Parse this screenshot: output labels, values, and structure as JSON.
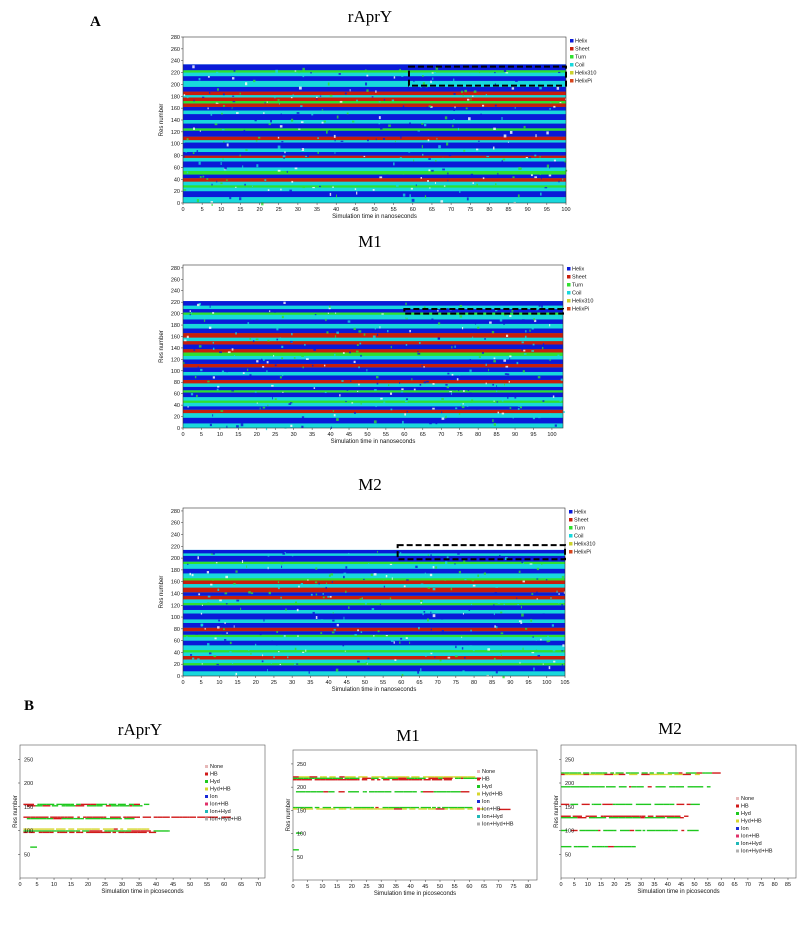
{
  "panels": {
    "a": "A",
    "b": "B"
  },
  "chart_data": [
    {
      "type": "heatmap",
      "title": "rAprY",
      "xlabel": "Simulation time in nanoseconds",
      "ylabel": "Res number",
      "xlim": [
        0,
        100
      ],
      "ylim": [
        0,
        280
      ],
      "xticks": [
        0,
        5,
        10,
        15,
        20,
        25,
        30,
        35,
        40,
        45,
        50,
        55,
        60,
        65,
        70,
        75,
        80,
        85,
        90,
        95,
        100
      ],
      "yticks": [
        0,
        20,
        40,
        60,
        80,
        100,
        120,
        140,
        160,
        180,
        200,
        220,
        240,
        260,
        280
      ],
      "legend": [
        "Helix",
        "Sheet",
        "Turn",
        "Coil",
        "Helix310",
        "HelixPi"
      ],
      "legend_position": "right",
      "legend_colors": [
        "#0a1ad8",
        "#c81e0c",
        "#2fe02f",
        "#18d8dc",
        "#ccd22c",
        "#d8441c"
      ],
      "bands_from_residue_0": [
        [
          "coil",
          10
        ],
        [
          "helix",
          10
        ],
        [
          "coil",
          6
        ],
        [
          "turn",
          4
        ],
        [
          "coil",
          6
        ],
        [
          "sheet",
          6
        ],
        [
          "helix",
          6
        ],
        [
          "turn",
          6
        ],
        [
          "coil",
          6
        ],
        [
          "helix",
          10
        ],
        [
          "coil",
          6
        ],
        [
          "sheet",
          4
        ],
        [
          "helix",
          6
        ],
        [
          "coil",
          6
        ],
        [
          "helix",
          10
        ],
        [
          "coil",
          4
        ],
        [
          "sheet",
          6
        ],
        [
          "helix",
          10
        ],
        [
          "turn",
          4
        ],
        [
          "helix",
          8
        ],
        [
          "coil",
          6
        ],
        [
          "helix",
          10
        ],
        [
          "coil",
          6
        ],
        [
          "helix",
          6
        ],
        [
          "sheet",
          6
        ],
        [
          "turn",
          4
        ],
        [
          "sheet",
          6
        ],
        [
          "coil",
          4
        ],
        [
          "sheet",
          6
        ],
        [
          "helix",
          8
        ],
        [
          "coil",
          10
        ],
        [
          "helix",
          8
        ],
        [
          "coil",
          6
        ],
        [
          "turn",
          4
        ],
        [
          "helix",
          10
        ]
      ],
      "annotation": "dashed box, residues ~198-230, time 59-100"
    },
    {
      "type": "heatmap",
      "title": "M1",
      "xlabel": "Simulation time in nanoseconds",
      "ylabel": "Res number",
      "xlim": [
        0,
        103
      ],
      "ylim": [
        0,
        285
      ],
      "xticks": [
        0,
        5,
        10,
        15,
        20,
        25,
        30,
        35,
        40,
        45,
        50,
        55,
        60,
        65,
        70,
        75,
        80,
        85,
        90,
        95,
        100
      ],
      "yticks": [
        0,
        20,
        40,
        60,
        80,
        100,
        120,
        140,
        160,
        180,
        200,
        220,
        240,
        260,
        280
      ],
      "legend": [
        "Helix",
        "Sheet",
        "Turn",
        "Coil",
        "Helix310",
        "HelixPi"
      ],
      "legend_position": "right",
      "legend_colors": [
        "#0a1ad8",
        "#c81e0c",
        "#2fe02f",
        "#18d8dc",
        "#ccd22c",
        "#d8441c"
      ],
      "bands_from_residue_0": [
        [
          "coil",
          8
        ],
        [
          "helix",
          10
        ],
        [
          "coil",
          8
        ],
        [
          "sheet",
          6
        ],
        [
          "helix",
          6
        ],
        [
          "coil",
          6
        ],
        [
          "turn",
          4
        ],
        [
          "coil",
          6
        ],
        [
          "helix",
          8
        ],
        [
          "turn",
          4
        ],
        [
          "helix",
          6
        ],
        [
          "coil",
          6
        ],
        [
          "sheet",
          6
        ],
        [
          "helix",
          8
        ],
        [
          "coil",
          6
        ],
        [
          "helix",
          8
        ],
        [
          "sheet",
          6
        ],
        [
          "helix",
          8
        ],
        [
          "coil",
          6
        ],
        [
          "turn",
          6
        ],
        [
          "sheet",
          6
        ],
        [
          "helix",
          8
        ],
        [
          "sheet",
          6
        ],
        [
          "coil",
          6
        ],
        [
          "sheet",
          8
        ],
        [
          "helix",
          8
        ],
        [
          "coil",
          8
        ],
        [
          "helix",
          8
        ],
        [
          "coil",
          8
        ],
        [
          "turn",
          4
        ],
        [
          "helix",
          6
        ],
        [
          "coil",
          6
        ],
        [
          "helix",
          8
        ]
      ],
      "annotation": "dashed box, residues ~200-208, time 60-103"
    },
    {
      "type": "heatmap",
      "title": "M2",
      "xlabel": "Simulation time in nanoseconds",
      "ylabel": "Res number",
      "xlim": [
        0,
        105
      ],
      "ylim": [
        0,
        285
      ],
      "xticks": [
        0,
        5,
        10,
        15,
        20,
        25,
        30,
        35,
        40,
        45,
        50,
        55,
        60,
        65,
        70,
        75,
        80,
        85,
        90,
        95,
        100,
        105
      ],
      "yticks": [
        0,
        20,
        40,
        60,
        80,
        100,
        120,
        140,
        160,
        180,
        200,
        220,
        240,
        260,
        280
      ],
      "legend": [
        "Helix",
        "Sheet",
        "Turn",
        "Coil",
        "Helix310",
        "HelixPi"
      ],
      "legend_position": "right",
      "legend_colors": [
        "#0a1ad8",
        "#c81e0c",
        "#2fe02f",
        "#18d8dc",
        "#ccd22c",
        "#d8441c"
      ],
      "bands_from_residue_0": [
        [
          "coil",
          8
        ],
        [
          "helix",
          10
        ],
        [
          "turn",
          4
        ],
        [
          "coil",
          6
        ],
        [
          "sheet",
          6
        ],
        [
          "coil",
          6
        ],
        [
          "turn",
          4
        ],
        [
          "coil",
          8
        ],
        [
          "helix",
          8
        ],
        [
          "coil",
          6
        ],
        [
          "turn",
          4
        ],
        [
          "helix",
          6
        ],
        [
          "sheet",
          6
        ],
        [
          "helix",
          8
        ],
        [
          "coil",
          6
        ],
        [
          "helix",
          10
        ],
        [
          "coil",
          6
        ],
        [
          "helix",
          8
        ],
        [
          "turn",
          4
        ],
        [
          "coil",
          6
        ],
        [
          "sheet",
          6
        ],
        [
          "helix",
          6
        ],
        [
          "sheet",
          8
        ],
        [
          "coil",
          6
        ],
        [
          "sheet",
          6
        ],
        [
          "turn",
          4
        ],
        [
          "coil",
          8
        ],
        [
          "helix",
          8
        ],
        [
          "coil",
          8
        ],
        [
          "turn",
          4
        ],
        [
          "helix",
          10
        ],
        [
          "coil",
          4
        ],
        [
          "helix",
          6
        ]
      ],
      "annotation": "dashed box, residues ~198-222, time 59-105"
    },
    {
      "type": "scatter",
      "title": "rAprY",
      "xlabel": "Simulation time in picoseconds",
      "ylabel": "Res number",
      "xlim": [
        0,
        72
      ],
      "ylim": [
        0,
        280
      ],
      "xticks": [
        0,
        5,
        10,
        15,
        20,
        25,
        30,
        35,
        40,
        45,
        50,
        55,
        60,
        65,
        70
      ],
      "yticks": [
        50,
        100,
        150,
        200,
        250
      ],
      "legend": [
        "None",
        "HB",
        "Hyd",
        "Hyd+HB",
        "Ion",
        "Ion+HB",
        "Ion+Hyd",
        "Ion+Hyd+HB"
      ],
      "legend_position": "right",
      "legend_colors": [
        "#e6b8b8",
        "#d11a1a",
        "#1ec81e",
        "#d6d62c",
        "#1a2ad6",
        "#e0306a",
        "#20b8b8",
        "#b0b0b0"
      ],
      "tracks": [
        {
          "res": 155,
          "t0": 1,
          "t1": 38,
          "kind": "Hyd"
        },
        {
          "res": 152,
          "t0": 2,
          "t1": 36,
          "kind": "Hyd"
        },
        {
          "res": 128,
          "t0": 1,
          "t1": 62,
          "kind": "HB"
        },
        {
          "res": 125,
          "t0": 2,
          "t1": 34,
          "kind": "Hyd"
        },
        {
          "res": 103,
          "t0": 1,
          "t1": 38,
          "kind": "Hyd+HB"
        },
        {
          "res": 99,
          "t0": 1,
          "t1": 44,
          "kind": "Hyd"
        },
        {
          "res": 96,
          "t0": 1,
          "t1": 40,
          "kind": "HB"
        },
        {
          "res": 65,
          "t0": 3,
          "t1": 5,
          "kind": "Hyd"
        }
      ]
    },
    {
      "type": "scatter",
      "title": "M1",
      "xlabel": "Simulation time in picoseconds",
      "ylabel": "Res number",
      "xlim": [
        0,
        83
      ],
      "ylim": [
        0,
        280
      ],
      "xticks": [
        0,
        5,
        10,
        15,
        20,
        25,
        30,
        35,
        40,
        45,
        50,
        55,
        60,
        65,
        70,
        75,
        80
      ],
      "yticks": [
        50,
        100,
        150,
        200,
        250
      ],
      "legend": [
        "None",
        "HB",
        "Hyd",
        "Hyd+HB",
        "Ion",
        "Ion+HB",
        "Ion+Hyd",
        "Ion+Hyd+HB"
      ],
      "legend_position": "right",
      "legend_colors": [
        "#e6b8b8",
        "#d11a1a",
        "#1ec81e",
        "#d6d62c",
        "#1a2ad6",
        "#e0306a",
        "#20b8b8",
        "#b0b0b0"
      ],
      "tracks": [
        {
          "res": 222,
          "t0": 0,
          "t1": 62,
          "kind": "Hyd+HB"
        },
        {
          "res": 219,
          "t0": 0,
          "t1": 64,
          "kind": "Hyd"
        },
        {
          "res": 216,
          "t0": 0,
          "t1": 55,
          "kind": "HB"
        },
        {
          "res": 190,
          "t0": 1,
          "t1": 60,
          "kind": "Hyd"
        },
        {
          "res": 156,
          "t0": 0,
          "t1": 62,
          "kind": "Hyd"
        },
        {
          "res": 153,
          "t0": 0,
          "t1": 65,
          "kind": "Hyd+HB"
        },
        {
          "res": 152,
          "t0": 70,
          "t1": 74,
          "kind": "HB"
        },
        {
          "res": 101,
          "t0": 1,
          "t1": 3,
          "kind": "Hyd"
        },
        {
          "res": 65,
          "t0": 0,
          "t1": 2,
          "kind": "Hyd"
        }
      ]
    },
    {
      "type": "scatter",
      "title": "M2",
      "xlabel": "Simulation time in picoseconds",
      "ylabel": "Res number",
      "xlim": [
        0,
        88
      ],
      "ylim": [
        0,
        280
      ],
      "xticks": [
        0,
        5,
        10,
        15,
        20,
        25,
        30,
        35,
        40,
        45,
        50,
        55,
        60,
        65,
        70,
        75,
        80,
        85
      ],
      "yticks": [
        50,
        100,
        150,
        200,
        250
      ],
      "legend": [
        "None",
        "HB",
        "Hyd",
        "Hyd+HB",
        "Ion",
        "Ion+HB",
        "Ion+Hyd",
        "Ion+Hyd+HB"
      ],
      "legend_position": "right",
      "legend_colors": [
        "#e6b8b8",
        "#d11a1a",
        "#1ec81e",
        "#d6d62c",
        "#1a2ad6",
        "#e0306a",
        "#20b8b8",
        "#b0b0b0"
      ],
      "tracks": [
        {
          "res": 221,
          "t0": 0,
          "t1": 60,
          "kind": "Hyd"
        },
        {
          "res": 218,
          "t0": 0,
          "t1": 52,
          "kind": "Hyd+HB"
        },
        {
          "res": 192,
          "t0": 0,
          "t1": 56,
          "kind": "Hyd"
        },
        {
          "res": 155,
          "t0": 0,
          "t1": 52,
          "kind": "Hyd"
        },
        {
          "res": 130,
          "t0": 0,
          "t1": 48,
          "kind": "HB"
        },
        {
          "res": 127,
          "t0": 0,
          "t1": 46,
          "kind": "Hyd"
        },
        {
          "res": 100,
          "t0": 0,
          "t1": 52,
          "kind": "Hyd"
        },
        {
          "res": 66,
          "t0": 0,
          "t1": 28,
          "kind": "Hyd"
        }
      ]
    }
  ]
}
